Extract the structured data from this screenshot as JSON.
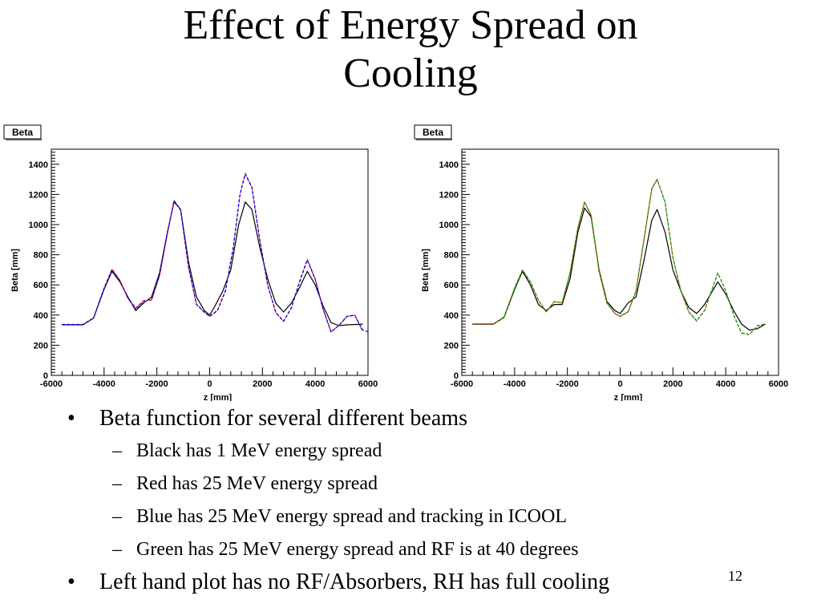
{
  "slide": {
    "title_line1": "Effect of Energy Spread on",
    "title_line2": "Cooling",
    "page_number": "12"
  },
  "bullets": [
    {
      "text": "Beta function for several different beams",
      "subs": [
        "Black has 1 MeV energy spread",
        "Red has 25 MeV energy spread",
        "Blue has 25 MeV energy spread and tracking in ICOOL",
        "Green has 25 MeV energy spread and RF is at 40 degrees"
      ]
    },
    {
      "text": "Left hand plot has no RF/Absorbers, RH has full cooling"
    }
  ],
  "chart_data": [
    {
      "type": "line",
      "title": "Beta",
      "xlabel": "z [mm]",
      "ylabel": "Beta [mm]",
      "xlim": [
        -6000,
        6000
      ],
      "ylim": [
        0,
        1500
      ],
      "xticks": [
        "-6000",
        "-4000",
        "-2000",
        "0",
        "2000",
        "4000",
        "6000"
      ],
      "yticks": [
        "0",
        "200",
        "400",
        "600",
        "800",
        "1000",
        "1200",
        "1400"
      ],
      "series": [
        {
          "color": "#000000",
          "points": [
            [
              -5600,
              335
            ],
            [
              -4800,
              335
            ],
            [
              -4400,
              380
            ],
            [
              -4000,
              570
            ],
            [
              -3700,
              690
            ],
            [
              -3400,
              620
            ],
            [
              -3100,
              520
            ],
            [
              -2800,
              430
            ],
            [
              -2500,
              480
            ],
            [
              -2200,
              520
            ],
            [
              -1900,
              680
            ],
            [
              -1600,
              950
            ],
            [
              -1350,
              1150
            ],
            [
              -1100,
              1100
            ],
            [
              -800,
              750
            ],
            [
              -500,
              520
            ],
            [
              -200,
              430
            ],
            [
              0,
              400
            ],
            [
              200,
              460
            ],
            [
              500,
              560
            ],
            [
              800,
              700
            ],
            [
              1100,
              1000
            ],
            [
              1350,
              1150
            ],
            [
              1600,
              1100
            ],
            [
              1900,
              850
            ],
            [
              2200,
              640
            ],
            [
              2500,
              480
            ],
            [
              2800,
              420
            ],
            [
              3100,
              480
            ],
            [
              3400,
              580
            ],
            [
              3700,
              690
            ],
            [
              4000,
              600
            ],
            [
              4300,
              460
            ],
            [
              4600,
              350
            ],
            [
              4900,
              330
            ],
            [
              5200,
              335
            ],
            [
              5800,
              340
            ]
          ]
        },
        {
          "color": "#ff0000",
          "points": [
            [
              -5600,
              335
            ],
            [
              -4800,
              335
            ],
            [
              -4400,
              380
            ],
            [
              -4000,
              580
            ],
            [
              -3700,
              705
            ],
            [
              -3400,
              630
            ],
            [
              -3100,
              510
            ],
            [
              -2800,
              440
            ],
            [
              -2500,
              490
            ],
            [
              -2200,
              500
            ],
            [
              -1900,
              660
            ],
            [
              -1600,
              940
            ],
            [
              -1350,
              1160
            ],
            [
              -1100,
              1100
            ],
            [
              -800,
              720
            ],
            [
              -500,
              470
            ],
            [
              -200,
              420
            ],
            [
              0,
              390
            ],
            [
              300,
              430
            ],
            [
              600,
              560
            ],
            [
              900,
              850
            ],
            [
              1150,
              1200
            ],
            [
              1350,
              1340
            ],
            [
              1600,
              1250
            ],
            [
              1900,
              900
            ],
            [
              2200,
              600
            ],
            [
              2500,
              420
            ],
            [
              2800,
              360
            ],
            [
              3100,
              450
            ],
            [
              3400,
              620
            ],
            [
              3700,
              770
            ],
            [
              4000,
              640
            ],
            [
              4300,
              440
            ],
            [
              4600,
              290
            ],
            [
              4900,
              330
            ],
            [
              5200,
              390
            ],
            [
              5500,
              400
            ],
            [
              5800,
              290
            ]
          ]
        },
        {
          "color": "#0000ff",
          "points": [
            [
              -5600,
              338
            ],
            [
              -4800,
              338
            ],
            [
              -4400,
              382
            ],
            [
              -4000,
              575
            ],
            [
              -3700,
              700
            ],
            [
              -3400,
              628
            ],
            [
              -3100,
              515
            ],
            [
              -2800,
              445
            ],
            [
              -2500,
              495
            ],
            [
              -2200,
              505
            ],
            [
              -1900,
              665
            ],
            [
              -1600,
              945
            ],
            [
              -1350,
              1158
            ],
            [
              -1100,
              1095
            ],
            [
              -800,
              715
            ],
            [
              -500,
              472
            ],
            [
              -200,
              418
            ],
            [
              0,
              392
            ],
            [
              300,
              432
            ],
            [
              600,
              565
            ],
            [
              900,
              855
            ],
            [
              1150,
              1205
            ],
            [
              1350,
              1335
            ],
            [
              1600,
              1245
            ],
            [
              1900,
              895
            ],
            [
              2200,
              598
            ],
            [
              2500,
              418
            ],
            [
              2800,
              358
            ],
            [
              3100,
              448
            ],
            [
              3400,
              615
            ],
            [
              3700,
              765
            ],
            [
              4000,
              635
            ],
            [
              4300,
              438
            ],
            [
              4600,
              288
            ],
            [
              4900,
              332
            ],
            [
              5200,
              392
            ],
            [
              5500,
              398
            ],
            [
              5800,
              300
            ],
            [
              6000,
              290
            ]
          ]
        }
      ]
    },
    {
      "type": "line",
      "title": "Beta",
      "xlabel": "z [mm]",
      "ylabel": "Beta [mm]",
      "xlim": [
        -6000,
        6000
      ],
      "ylim": [
        0,
        1500
      ],
      "xticks": [
        "-6000",
        "-4000",
        "-2000",
        "0",
        "2000",
        "4000",
        "6000"
      ],
      "yticks": [
        "0",
        "200",
        "400",
        "600",
        "800",
        "1000",
        "1200",
        "1400"
      ],
      "series": [
        {
          "color": "#000000",
          "points": [
            [
              -5600,
              340
            ],
            [
              -4800,
              340
            ],
            [
              -4400,
              385
            ],
            [
              -4000,
              570
            ],
            [
              -3700,
              690
            ],
            [
              -3400,
              600
            ],
            [
              -3100,
              470
            ],
            [
              -2800,
              430
            ],
            [
              -2500,
              470
            ],
            [
              -2200,
              470
            ],
            [
              -1900,
              640
            ],
            [
              -1600,
              950
            ],
            [
              -1350,
              1110
            ],
            [
              -1100,
              1050
            ],
            [
              -800,
              700
            ],
            [
              -500,
              490
            ],
            [
              -200,
              430
            ],
            [
              0,
              410
            ],
            [
              300,
              480
            ],
            [
              600,
              520
            ],
            [
              900,
              760
            ],
            [
              1200,
              1030
            ],
            [
              1400,
              1100
            ],
            [
              1700,
              950
            ],
            [
              2000,
              700
            ],
            [
              2300,
              560
            ],
            [
              2600,
              450
            ],
            [
              2900,
              410
            ],
            [
              3200,
              470
            ],
            [
              3500,
              560
            ],
            [
              3700,
              620
            ],
            [
              4000,
              540
            ],
            [
              4300,
              430
            ],
            [
              4600,
              340
            ],
            [
              4900,
              300
            ],
            [
              5200,
              310
            ],
            [
              5500,
              340
            ]
          ]
        },
        {
          "color": "#ff0000",
          "points": [
            [
              -5600,
              340
            ],
            [
              -4800,
              340
            ],
            [
              -4400,
              385
            ],
            [
              -4000,
              580
            ],
            [
              -3700,
              700
            ],
            [
              -3400,
              620
            ],
            [
              -3100,
              500
            ],
            [
              -2800,
              420
            ],
            [
              -2500,
              490
            ],
            [
              -2200,
              480
            ],
            [
              -1900,
              680
            ],
            [
              -1600,
              980
            ],
            [
              -1350,
              1150
            ],
            [
              -1100,
              1060
            ],
            [
              -800,
              690
            ],
            [
              -500,
              480
            ],
            [
              -200,
              410
            ],
            [
              0,
              390
            ],
            [
              300,
              420
            ],
            [
              600,
              560
            ],
            [
              900,
              900
            ],
            [
              1200,
              1240
            ],
            [
              1400,
              1300
            ],
            [
              1700,
              1150
            ],
            [
              2000,
              780
            ],
            [
              2300,
              560
            ],
            [
              2600,
              420
            ],
            [
              2900,
              360
            ],
            [
              3200,
              430
            ],
            [
              3500,
              580
            ],
            [
              3700,
              680
            ],
            [
              4000,
              560
            ],
            [
              4300,
              400
            ],
            [
              4600,
              280
            ],
            [
              4900,
              270
            ],
            [
              5200,
              330
            ],
            [
              5500,
              340
            ]
          ]
        },
        {
          "color": "#00b000",
          "points": [
            [
              -5600,
              342
            ],
            [
              -4800,
              342
            ],
            [
              -4400,
              387
            ],
            [
              -4000,
              578
            ],
            [
              -3700,
              698
            ],
            [
              -3400,
              618
            ],
            [
              -3100,
              498
            ],
            [
              -2800,
              422
            ],
            [
              -2500,
              488
            ],
            [
              -2200,
              482
            ],
            [
              -1900,
              678
            ],
            [
              -1600,
              975
            ],
            [
              -1350,
              1148
            ],
            [
              -1100,
              1062
            ],
            [
              -800,
              692
            ],
            [
              -500,
              482
            ],
            [
              -200,
              412
            ],
            [
              0,
              392
            ],
            [
              300,
              422
            ],
            [
              600,
              558
            ],
            [
              900,
              895
            ],
            [
              1200,
              1235
            ],
            [
              1400,
              1298
            ],
            [
              1700,
              1148
            ],
            [
              2000,
              782
            ],
            [
              2300,
              562
            ],
            [
              2600,
              422
            ],
            [
              2900,
              362
            ],
            [
              3200,
              432
            ],
            [
              3500,
              578
            ],
            [
              3700,
              678
            ],
            [
              4000,
              562
            ],
            [
              4300,
              402
            ],
            [
              4600,
              282
            ],
            [
              4900,
              272
            ],
            [
              5200,
              328
            ],
            [
              5500,
              342
            ]
          ]
        }
      ]
    }
  ]
}
